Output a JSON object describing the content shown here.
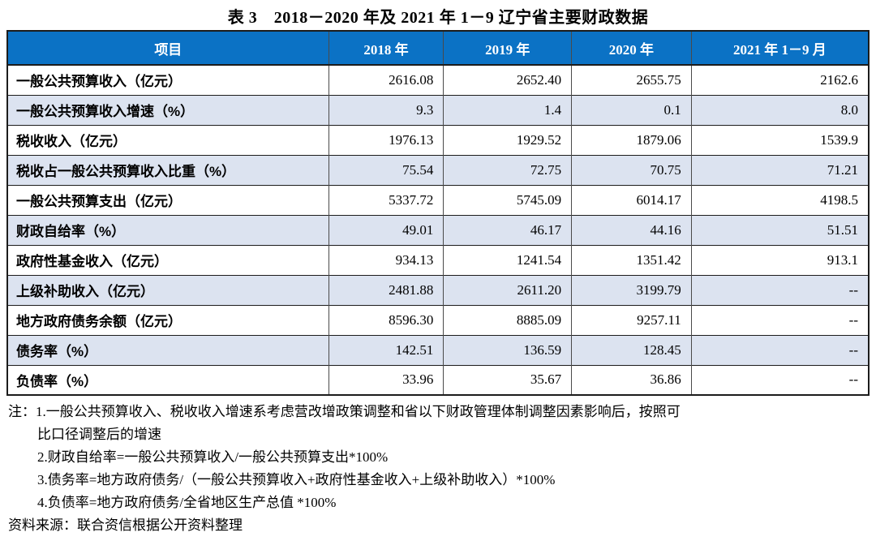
{
  "title": "表 3　2018－2020 年及 2021 年 1－9 辽宁省主要财政数据",
  "table": {
    "columns": [
      "项目",
      "2018 年",
      "2019 年",
      "2020 年",
      "2021 年 1－9 月"
    ],
    "rows": [
      {
        "label": "一般公共预算收入（亿元）",
        "values": [
          "2616.08",
          "2652.40",
          "2655.75",
          "2162.6"
        ]
      },
      {
        "label": "一般公共预算收入增速（%）",
        "values": [
          "9.3",
          "1.4",
          "0.1",
          "8.0"
        ]
      },
      {
        "label": "税收收入（亿元）",
        "values": [
          "1976.13",
          "1929.52",
          "1879.06",
          "1539.9"
        ]
      },
      {
        "label": "税收占一般公共预算收入比重（%）",
        "values": [
          "75.54",
          "72.75",
          "70.75",
          "71.21"
        ]
      },
      {
        "label": "一般公共预算支出（亿元）",
        "values": [
          "5337.72",
          "5745.09",
          "6014.17",
          "4198.5"
        ]
      },
      {
        "label": "财政自给率（%）",
        "values": [
          "49.01",
          "46.17",
          "44.16",
          "51.51"
        ]
      },
      {
        "label": "政府性基金收入（亿元）",
        "values": [
          "934.13",
          "1241.54",
          "1351.42",
          "913.1"
        ]
      },
      {
        "label": "上级补助收入（亿元）",
        "values": [
          "2481.88",
          "2611.20",
          "3199.79",
          "--"
        ]
      },
      {
        "label": "地方政府债务余额（亿元）",
        "values": [
          "8596.30",
          "8885.09",
          "9257.11",
          "--"
        ]
      },
      {
        "label": "债务率（%）",
        "values": [
          "142.51",
          "136.59",
          "128.45",
          "--"
        ]
      },
      {
        "label": "负债率（%）",
        "values": [
          "33.96",
          "35.67",
          "36.86",
          "--"
        ]
      }
    ]
  },
  "notes": {
    "lines": [
      {
        "indent": 0,
        "text": "注：1.一般公共预算收入、税收收入增速系考虑营改增政策调整和省以下财政管理体制调整因素影响后，按照可"
      },
      {
        "indent": 1,
        "text": "比口径调整后的增速"
      },
      {
        "indent": 1,
        "text": "2.财政自给率=一般公共预算收入/一般公共预算支出*100%"
      },
      {
        "indent": 1,
        "text": "3.债务率=地方政府债务/（一般公共预算收入+政府性基金收入+上级补助收入）*100%"
      },
      {
        "indent": 1,
        "text": "4.负债率=地方政府债务/全省地区生产总值 *100%"
      }
    ]
  },
  "source": "资料来源：联合资信根据公开资料整理",
  "colors": {
    "header_bg": "#0b72c5",
    "header_text": "#ffffff",
    "row_alt_bg": "#dce3f0",
    "border_dark": "#1c1c1c",
    "border_mid": "#4a4a4a",
    "text": "#000000"
  }
}
